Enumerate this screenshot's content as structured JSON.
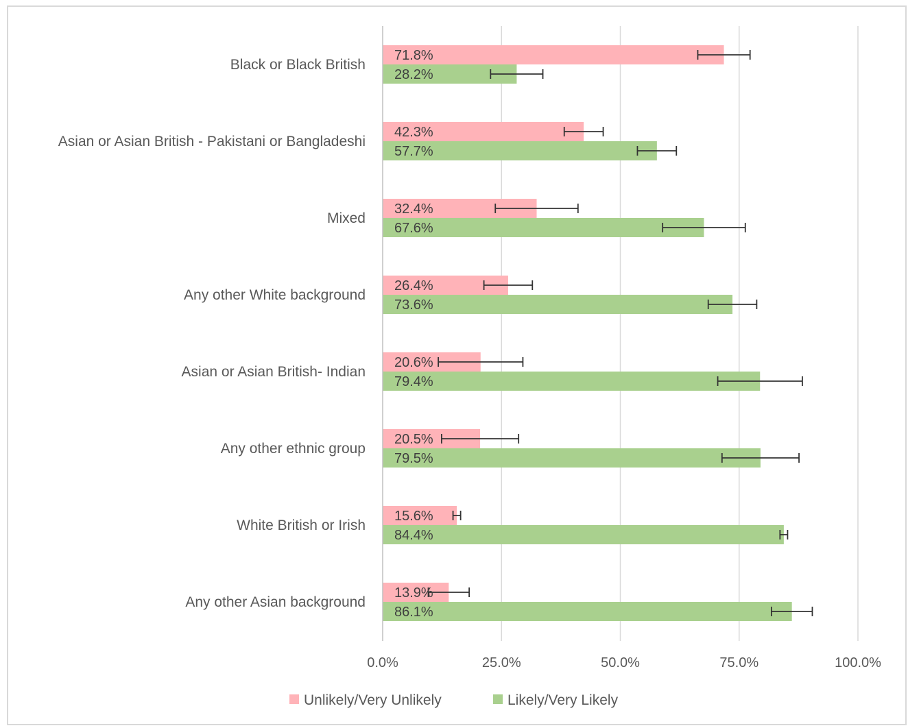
{
  "chart_data": {
    "type": "bar",
    "orientation": "horizontal",
    "categories": [
      "Black or Black British",
      "Asian or Asian British - Pakistani or Bangladeshi",
      "Mixed",
      "Any other White background",
      "Asian or Asian British- Indian",
      "Any other ethnic group",
      "White British or Irish",
      "Any other Asian background"
    ],
    "series": [
      {
        "name": "Unlikely/Very Unlikely",
        "color": "#ffb3b8",
        "values": [
          71.8,
          42.3,
          32.4,
          26.4,
          20.6,
          20.5,
          15.6,
          13.9
        ],
        "labels": [
          "71.8%",
          "42.3%",
          "32.4%",
          "26.4%",
          "20.6%",
          "20.5%",
          "15.6%",
          "13.9%"
        ],
        "error_low": [
          66.3,
          38.2,
          23.7,
          21.3,
          11.7,
          12.4,
          14.8,
          9.6
        ],
        "error_high": [
          77.3,
          46.4,
          41.1,
          31.5,
          29.5,
          28.6,
          16.4,
          18.2
        ]
      },
      {
        "name": "Likely/Very Likely",
        "color": "#a9d08e",
        "values": [
          28.2,
          57.7,
          67.6,
          73.6,
          79.4,
          79.5,
          84.4,
          86.1
        ],
        "labels": [
          "28.2%",
          "57.7%",
          "67.6%",
          "73.6%",
          "79.4%",
          "79.5%",
          "84.4%",
          "86.1%"
        ],
        "error_low": [
          22.7,
          53.6,
          58.9,
          68.5,
          70.5,
          71.4,
          83.6,
          81.8
        ],
        "error_high": [
          33.7,
          61.8,
          76.3,
          78.7,
          88.3,
          87.6,
          85.2,
          90.4
        ]
      }
    ],
    "xlim": [
      0,
      100
    ],
    "xticks": [
      0,
      25,
      50,
      75,
      100
    ],
    "xtick_labels": [
      "0.0%",
      "25.0%",
      "50.0%",
      "75.0%",
      "100.0%"
    ],
    "grid": true,
    "legend_position": "bottom",
    "title": "",
    "xlabel": "",
    "ylabel": ""
  }
}
